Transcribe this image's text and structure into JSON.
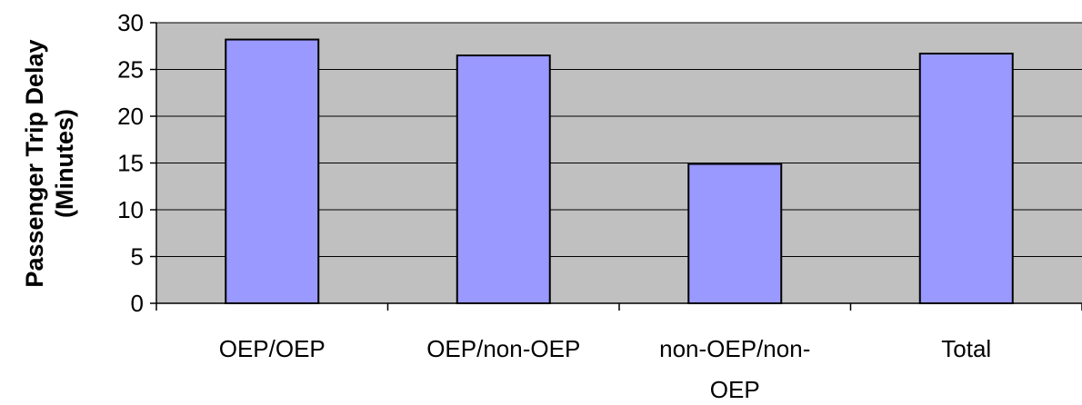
{
  "chart_data": {
    "type": "bar",
    "title": "",
    "xlabel": "",
    "ylabel": [
      "Passenger Trip Delay",
      "(Minutes)"
    ],
    "categories": [
      [
        "OEP/OEP"
      ],
      [
        "OEP/non-OEP"
      ],
      [
        "non-OEP/non-",
        "OEP"
      ],
      [
        "Total"
      ]
    ],
    "values": [
      28.2,
      26.5,
      14.9,
      26.7
    ],
    "ylim": [
      0,
      30
    ],
    "yticks": [
      0,
      5,
      10,
      15,
      20,
      25,
      30
    ],
    "grid": true,
    "legend": "none",
    "colors": {
      "bar_fill": "#9999ff",
      "bar_stroke": "#000000",
      "plot_background": "#c0c0c0",
      "gridline": "#000000",
      "axis": "#000000"
    }
  }
}
